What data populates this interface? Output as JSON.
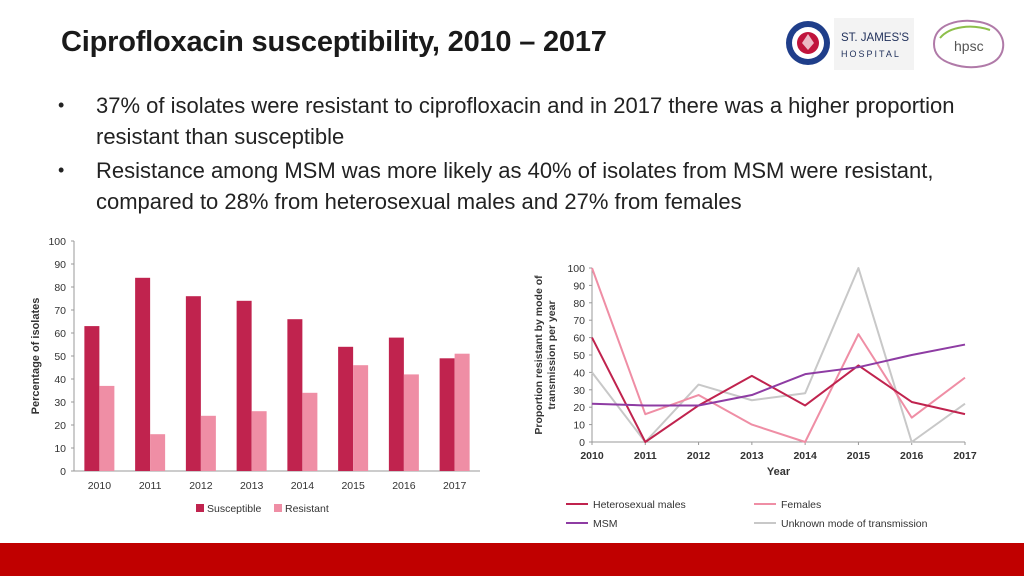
{
  "title": "Ciprofloxacin susceptibility, 2010 – 2017",
  "logos": {
    "st_james_line1": "ST. JAMES'S",
    "st_james_line2": "HOSPITAL",
    "hpsc": "hpsc"
  },
  "bullets": [
    "37% of isolates were resistant to ciprofloxacin and in 2017 there was a higher proportion resistant than susceptible",
    "Resistance among MSM was more likely as 40% of isolates from MSM were resistant, compared to 28% from heterosexual males and 27% from females"
  ],
  "colors": {
    "susceptible": "#c0234e",
    "resistant": "#ef8ea5",
    "heterosexual": "#c0234e",
    "females": "#ef8ea5",
    "msm": "#8e3ca3",
    "unknown": "#c8c8c8",
    "footer": "#c00000"
  },
  "chart_data": [
    {
      "type": "bar",
      "title": "",
      "xlabel": "",
      "ylabel": "Percentage of isolates",
      "ylim": [
        0,
        100
      ],
      "yticks": [
        0,
        10,
        20,
        30,
        40,
        50,
        60,
        70,
        80,
        90,
        100
      ],
      "categories": [
        "2010",
        "2011",
        "2012",
        "2013",
        "2014",
        "2015",
        "2016",
        "2017"
      ],
      "series": [
        {
          "name": "Susceptible",
          "values": [
            63,
            84,
            76,
            74,
            66,
            54,
            58,
            49
          ]
        },
        {
          "name": "Resistant",
          "values": [
            37,
            16,
            24,
            26,
            34,
            46,
            42,
            51
          ]
        }
      ],
      "legend": "bottom"
    },
    {
      "type": "line",
      "title": "",
      "xlabel": "Year",
      "ylabel": "Proportion resistant by mode of transmission per year",
      "ylabel_lines": [
        "Proportion resistant by mode of",
        "transmission per year"
      ],
      "ylim": [
        0,
        100
      ],
      "yticks": [
        0,
        10,
        20,
        30,
        40,
        50,
        60,
        70,
        80,
        90,
        100
      ],
      "x": [
        "2010",
        "2011",
        "2012",
        "2013",
        "2014",
        "2015",
        "2016",
        "2017"
      ],
      "series": [
        {
          "name": "Heterosexual males",
          "values": [
            60,
            0,
            21,
            38,
            21,
            44,
            23,
            16
          ]
        },
        {
          "name": "Females",
          "values": [
            100,
            16,
            27,
            10,
            0,
            62,
            14,
            37
          ]
        },
        {
          "name": "MSM",
          "values": [
            22,
            21,
            21,
            27,
            39,
            43,
            50,
            56
          ]
        },
        {
          "name": "Unknown mode of transmission",
          "values": [
            40,
            0,
            33,
            24,
            28,
            100,
            0,
            22
          ]
        }
      ],
      "legend": "bottom"
    }
  ]
}
